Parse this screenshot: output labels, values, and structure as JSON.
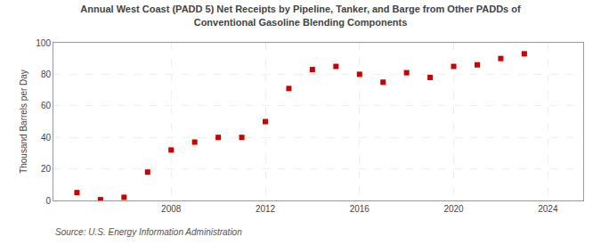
{
  "chart_data": {
    "type": "scatter",
    "title": "Annual West Coast (PADD 5) Net Receipts by Pipeline, Tanker, and Barge from Other PADDs of\nConventional Gasoline Blending Components",
    "ylabel": "Thousand Barrels per Day",
    "annotations": [
      "Source: U.S. Energy Information Administration"
    ],
    "x": [
      2004,
      2005,
      2006,
      2007,
      2008,
      2009,
      2010,
      2011,
      2012,
      2013,
      2014,
      2015,
      2016,
      2017,
      2018,
      2019,
      2020,
      2021,
      2022,
      2023,
      2024
    ],
    "values": [
      5,
      0.5,
      2,
      18,
      32,
      37,
      40,
      40,
      50,
      71,
      83,
      85,
      80,
      75,
      81,
      78,
      85,
      86,
      90,
      93,
      null
    ],
    "color": "#cc0000",
    "marker": "square",
    "xlim": [
      2003.0,
      2025.5
    ],
    "ylim": [
      0,
      100
    ],
    "xticks": [
      2008,
      2012,
      2016,
      2020,
      2024
    ],
    "yticks": [
      0,
      20,
      40,
      60,
      80,
      100
    ],
    "grid": true
  }
}
